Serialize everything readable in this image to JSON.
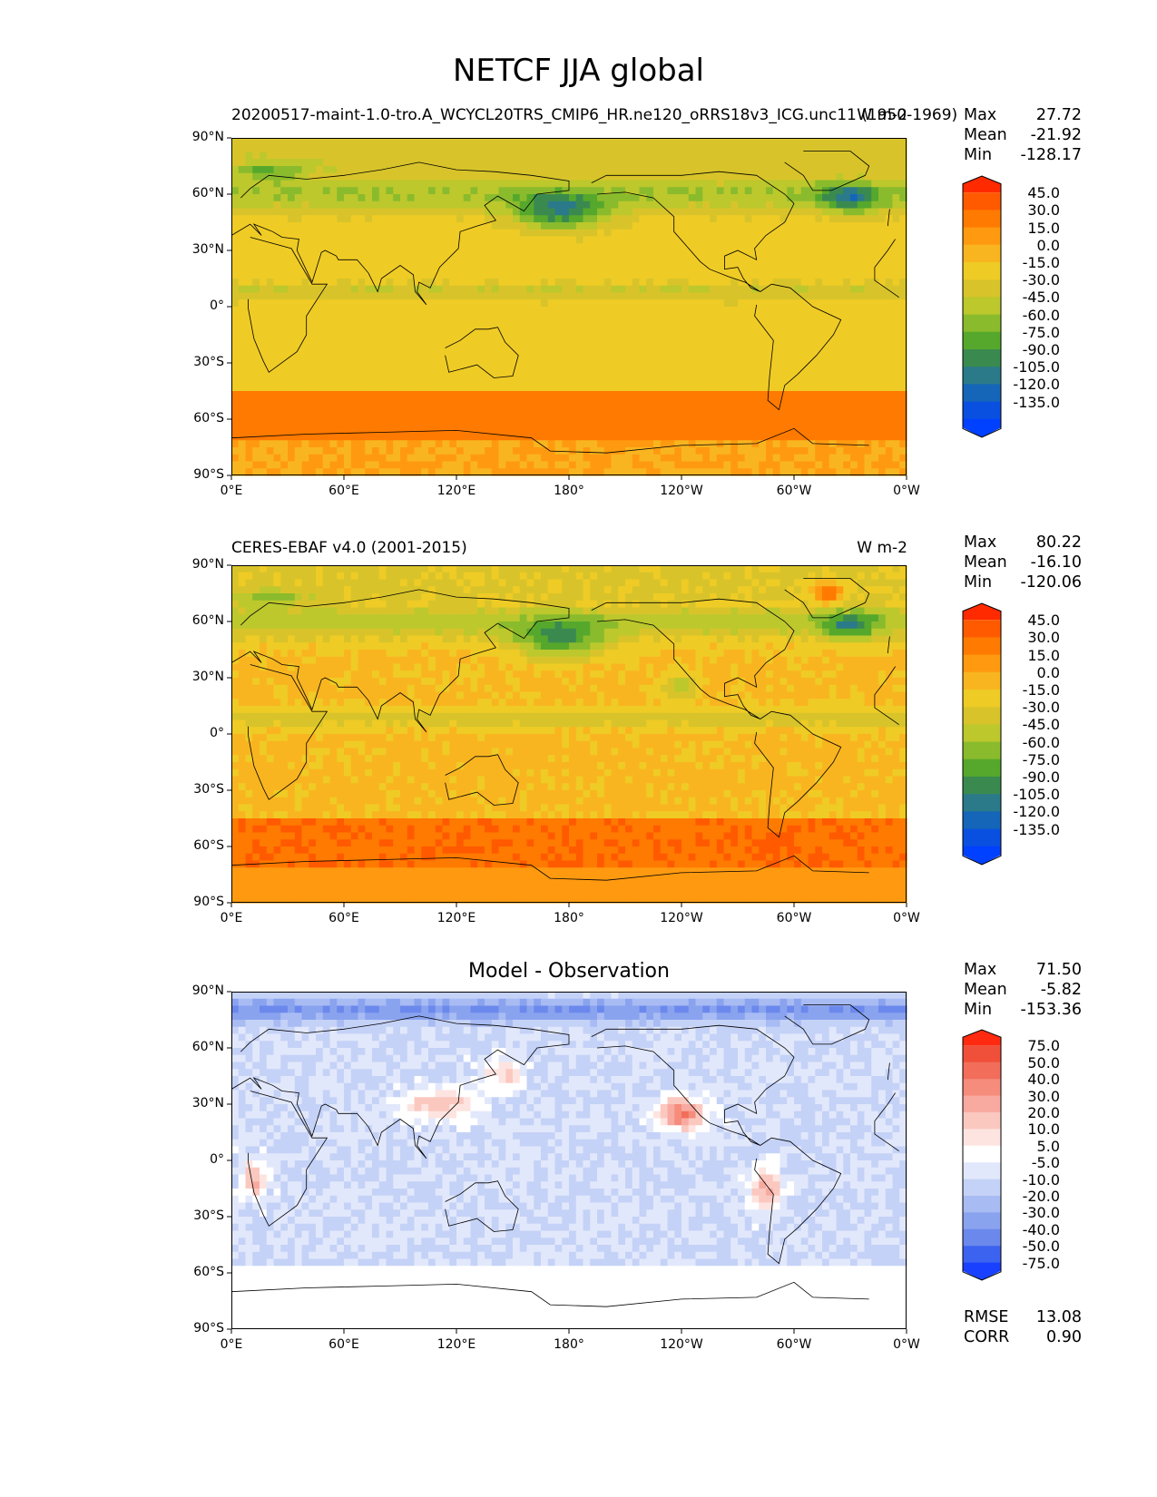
{
  "figure_title": "NETCF JJA global",
  "lat_ticks": [
    "90°N",
    "60°N",
    "30°N",
    "0°",
    "30°S",
    "60°S",
    "90°S"
  ],
  "lon_ticks": [
    "0°E",
    "60°E",
    "120°E",
    "180°",
    "120°W",
    "60°W",
    "0°W"
  ],
  "panels": [
    {
      "title_left": "20200517-maint-1.0-tro.A_WCYCL20TRS_CMIP6_HR.ne120_oRRS18v3_ICG.unc11 (1950-1969)",
      "title_right": "W m-2",
      "title_center": "",
      "stats": [
        {
          "label": "Max",
          "value": "27.72"
        },
        {
          "label": "Mean",
          "value": "-21.92"
        },
        {
          "label": "Min",
          "value": "-128.17"
        }
      ],
      "colorbar_labels": [
        "45.0",
        "30.0",
        "15.0",
        "0.0",
        "-15.0",
        "-30.0",
        "-45.0",
        "-60.0",
        "-75.0",
        "-90.0",
        "-105.0",
        "-120.0",
        "-135.0"
      ],
      "colorbar_colors": [
        "#ff2a00",
        "#ff5a00",
        "#ff7a00",
        "#ff9a10",
        "#f9b520",
        "#efcb25",
        "#d8c42a",
        "#bcc82c",
        "#8abb2c",
        "#55a82c",
        "#3a8a50",
        "#2a7a8a",
        "#1566b8",
        "#0a50e0",
        "#0040ff"
      ],
      "field": "model"
    },
    {
      "title_left": "CERES-EBAF v4.0 (2001-2015)",
      "title_right": "W m-2",
      "title_center": "",
      "stats": [
        {
          "label": "Max",
          "value": "80.22"
        },
        {
          "label": "Mean",
          "value": "-16.10"
        },
        {
          "label": "Min",
          "value": "-120.06"
        }
      ],
      "colorbar_labels": [
        "45.0",
        "30.0",
        "15.0",
        "0.0",
        "-15.0",
        "-30.0",
        "-45.0",
        "-60.0",
        "-75.0",
        "-90.0",
        "-105.0",
        "-120.0",
        "-135.0"
      ],
      "colorbar_colors": [
        "#ff2a00",
        "#ff5a00",
        "#ff7a00",
        "#ff9a10",
        "#f9b520",
        "#efcb25",
        "#d8c42a",
        "#bcc82c",
        "#8abb2c",
        "#55a82c",
        "#3a8a50",
        "#2a7a8a",
        "#1566b8",
        "#0a50e0",
        "#0040ff"
      ],
      "field": "obs"
    },
    {
      "title_left": "",
      "title_right": "",
      "title_center": "Model - Observation",
      "stats": [
        {
          "label": "Max",
          "value": "71.50"
        },
        {
          "label": "Mean",
          "value": "-5.82"
        },
        {
          "label": "Min",
          "value": "-153.36"
        }
      ],
      "colorbar_labels": [
        "75.0",
        "50.0",
        "40.0",
        "30.0",
        "20.0",
        "10.0",
        "5.0",
        "-5.0",
        "-10.0",
        "-20.0",
        "-30.0",
        "-40.0",
        "-50.0",
        "-75.0"
      ],
      "colorbar_colors": [
        "#ff2a10",
        "#f0503a",
        "#f26e5a",
        "#f58c7c",
        "#f8aaa0",
        "#fbc8c0",
        "#fde4e0",
        "#ffffff",
        "#e2e8fb",
        "#c5d2f7",
        "#a8bbf3",
        "#8aa3ef",
        "#6b88ec",
        "#3c62f0",
        "#1a40ff"
      ],
      "field": "diff",
      "extra_stats": [
        {
          "label": "RMSE",
          "value": "13.08"
        },
        {
          "label": "CORR",
          "value": "0.90"
        }
      ]
    }
  ]
}
